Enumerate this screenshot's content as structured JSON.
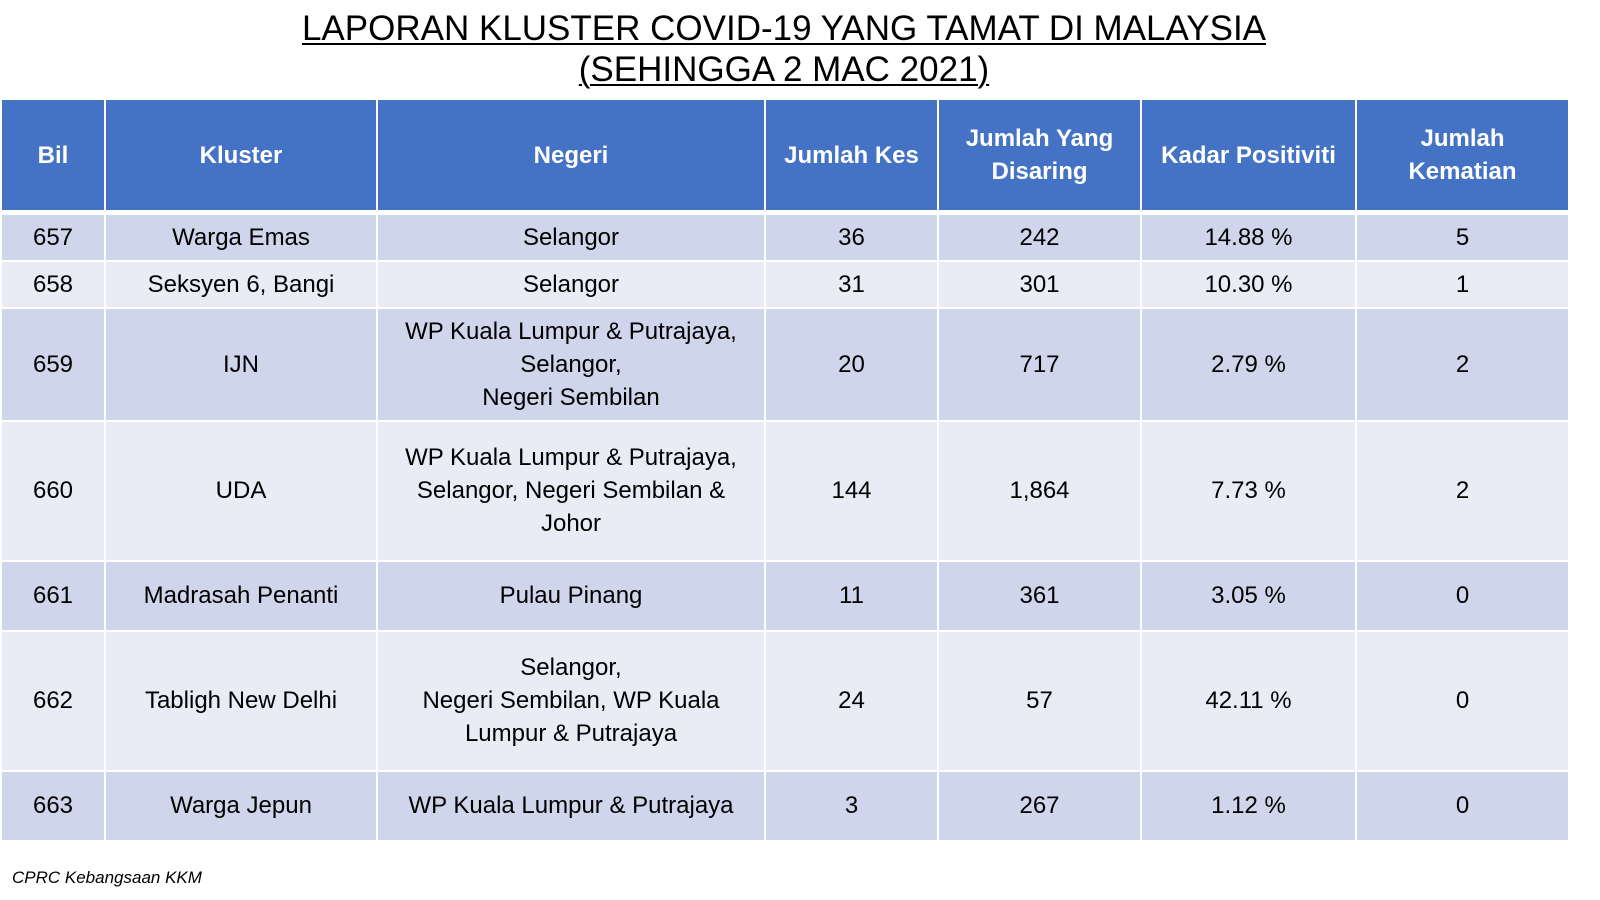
{
  "title_line1": "LAPORAN KLUSTER COVID-19 YANG TAMAT DI MALAYSIA",
  "title_line2": "(SEHINGGA 2 MAC 2021)",
  "headers": {
    "bil": "Bil",
    "kluster": "Kluster",
    "negeri": "Negeri",
    "jumlah_kes": "Jumlah Kes",
    "disaring_1": "Jumlah Yang",
    "disaring_2": "Disaring",
    "positiviti": "Kadar Positiviti",
    "kematian_1": "Jumlah",
    "kematian_2": "Kematian"
  },
  "rows": [
    {
      "bil": "657",
      "kluster": "Warga Emas",
      "negeri": [
        "Selangor"
      ],
      "kes": "36",
      "disaring": "242",
      "positiviti": "14.88 %",
      "kematian": "5"
    },
    {
      "bil": "658",
      "kluster": "Seksyen 6, Bangi",
      "negeri": [
        "Selangor"
      ],
      "kes": "31",
      "disaring": "301",
      "positiviti": "10.30 %",
      "kematian": "1"
    },
    {
      "bil": "659",
      "kluster": "IJN",
      "negeri": [
        "WP Kuala Lumpur & Putrajaya,",
        "Selangor,",
        "Negeri Sembilan"
      ],
      "kes": "20",
      "disaring": "717",
      "positiviti": "2.79 %",
      "kematian": "2"
    },
    {
      "bil": "660",
      "kluster": "UDA",
      "negeri": [
        "WP Kuala Lumpur & Putrajaya,",
        "Selangor, Negeri Sembilan &",
        "Johor"
      ],
      "kes": "144",
      "disaring": "1,864",
      "positiviti": "7.73 %",
      "kematian": "2"
    },
    {
      "bil": "661",
      "kluster": "Madrasah Penanti",
      "negeri": [
        "Pulau Pinang"
      ],
      "kes": "11",
      "disaring": "361",
      "positiviti": "3.05 %",
      "kematian": "0"
    },
    {
      "bil": "662",
      "kluster": "Tabligh New Delhi",
      "negeri": [
        "Selangor,",
        "Negeri Sembilan, WP Kuala",
        "Lumpur & Putrajaya"
      ],
      "kes": "24",
      "disaring": "57",
      "positiviti": "42.11 %",
      "kematian": "0"
    },
    {
      "bil": "663",
      "kluster": "Warga Jepun",
      "negeri": [
        "WP Kuala Lumpur & Putrajaya"
      ],
      "kes": "3",
      "disaring": "267",
      "positiviti": "1.12 %",
      "kematian": "0"
    }
  ],
  "source": "CPRC Kebangsaan KKM",
  "colors": {
    "header_bg": "#4472c4",
    "row_odd": "#cfd5ea",
    "row_even": "#e9ebf5"
  }
}
